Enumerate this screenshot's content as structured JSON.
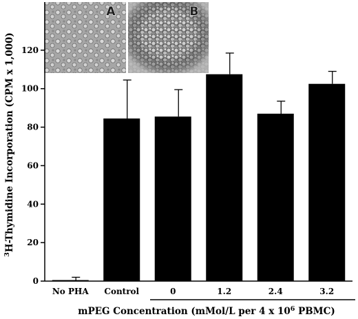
{
  "chart_data": {
    "type": "bar",
    "categories": [
      "No PHA",
      "Control",
      "0",
      "1.2",
      "2.4",
      "3.2"
    ],
    "values": [
      0.5,
      84.5,
      85.5,
      107.5,
      87,
      102.5
    ],
    "errors": [
      1.5,
      20,
      14,
      11,
      6.5,
      6.5
    ],
    "ylabel": {
      "superscript": "3",
      "text": "H-Thymidine Incorporation (CPM x 1,000)"
    },
    "xlabel": {
      "before": "mPEG Concentration (mMol/L per 4 x 10",
      "superscript": "6",
      "after": " PBMC)"
    },
    "ylim": [
      0,
      145
    ],
    "yticks": [
      0,
      20,
      40,
      60,
      80,
      100,
      120
    ],
    "bar_color": "#000000",
    "grid": false,
    "bracket_under_categories": [
      "0",
      "1.2",
      "2.4",
      "3.2"
    ],
    "inset_images": [
      {
        "panel_label": "A",
        "depicts": "dispersed individual cells (micrograph)"
      },
      {
        "panel_label": "B",
        "depicts": "clustered cell aggregate (micrograph)"
      }
    ]
  }
}
